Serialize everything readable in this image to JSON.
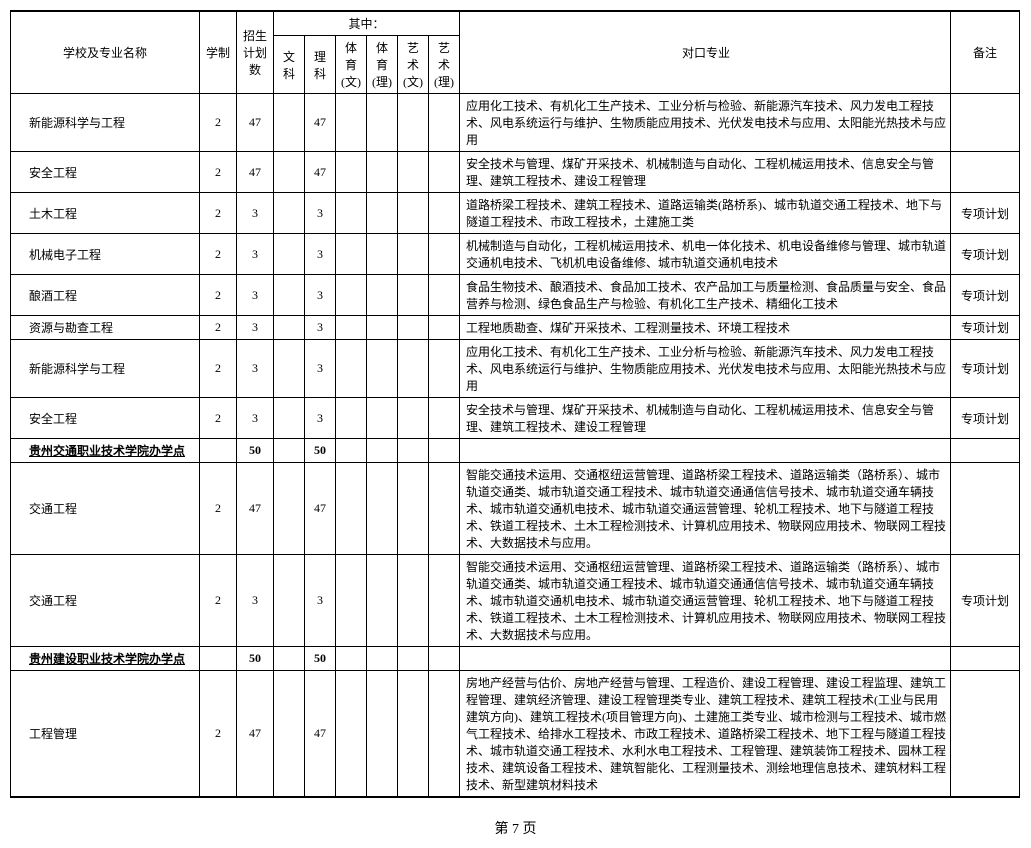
{
  "headers": {
    "name": "学校及专业名称",
    "xuezhi": "学制",
    "zhaosheng": "招生计划数",
    "qizhong": "其中：",
    "wenke": "文科",
    "like": "理科",
    "tiyu_wen": "体育(文)",
    "tiyu_li": "体育(理)",
    "yishu_wen": "艺术(文)",
    "yishu_li": "艺术(理)",
    "duikou": "对口专业",
    "beizhu": "备注"
  },
  "rows": [
    {
      "name": "新能源科学与工程",
      "xz": "2",
      "zs": "47",
      "wk": "",
      "lk": "47",
      "ty1": "",
      "ty2": "",
      "ys1": "",
      "ys2": "",
      "dk": "应用化工技术、有机化工生产技术、工业分析与检验、新能源汽车技术、风力发电工程技术、风电系统运行与维护、生物质能应用技术、光伏发电技术与应用、太阳能光热技术与应用",
      "bz": "",
      "bold": false
    },
    {
      "name": "安全工程",
      "xz": "2",
      "zs": "47",
      "wk": "",
      "lk": "47",
      "ty1": "",
      "ty2": "",
      "ys1": "",
      "ys2": "",
      "dk": "安全技术与管理、煤矿开采技术、机械制造与自动化、工程机械运用技术、信息安全与管理、建筑工程技术、建设工程管理",
      "bz": "",
      "bold": false
    },
    {
      "name": "土木工程",
      "xz": "2",
      "zs": "3",
      "wk": "",
      "lk": "3",
      "ty1": "",
      "ty2": "",
      "ys1": "",
      "ys2": "",
      "dk": "道路桥梁工程技术、建筑工程技术、道路运输类(路桥系)、城市轨道交通工程技术、地下与隧道工程技术、市政工程技术，土建施工类",
      "bz": "专项计划",
      "bold": false
    },
    {
      "name": "机械电子工程",
      "xz": "2",
      "zs": "3",
      "wk": "",
      "lk": "3",
      "ty1": "",
      "ty2": "",
      "ys1": "",
      "ys2": "",
      "dk": "机械制造与自动化，工程机械运用技术、机电一体化技术、机电设备维修与管理、城市轨道交通机电技术、飞机机电设备维修、城市轨道交通机电技术",
      "bz": "专项计划",
      "bold": false
    },
    {
      "name": "酿酒工程",
      "xz": "2",
      "zs": "3",
      "wk": "",
      "lk": "3",
      "ty1": "",
      "ty2": "",
      "ys1": "",
      "ys2": "",
      "dk": "食品生物技术、酿酒技术、食品加工技术、农产品加工与质量检测、食品质量与安全、食品营养与检测、绿色食品生产与检验、有机化工生产技术、精细化工技术",
      "bz": "专项计划",
      "bold": false
    },
    {
      "name": "资源与勘查工程",
      "xz": "2",
      "zs": "3",
      "wk": "",
      "lk": "3",
      "ty1": "",
      "ty2": "",
      "ys1": "",
      "ys2": "",
      "dk": "工程地质勘查、煤矿开采技术、工程测量技术、环境工程技术",
      "bz": "专项计划",
      "bold": false
    },
    {
      "name": "新能源科学与工程",
      "xz": "2",
      "zs": "3",
      "wk": "",
      "lk": "3",
      "ty1": "",
      "ty2": "",
      "ys1": "",
      "ys2": "",
      "dk": "应用化工技术、有机化工生产技术、工业分析与检验、新能源汽车技术、风力发电工程技术、风电系统运行与维护、生物质能应用技术、光伏发电技术与应用、太阳能光热技术与应用",
      "bz": "专项计划",
      "bold": false
    },
    {
      "name": "安全工程",
      "xz": "2",
      "zs": "3",
      "wk": "",
      "lk": "3",
      "ty1": "",
      "ty2": "",
      "ys1": "",
      "ys2": "",
      "dk": "安全技术与管理、煤矿开采技术、机械制造与自动化、工程机械运用技术、信息安全与管理、建筑工程技术、建设工程管理",
      "bz": "专项计划",
      "bold": false
    },
    {
      "name": "贵州交通职业技术学院办学点",
      "xz": "",
      "zs": "50",
      "wk": "",
      "lk": "50",
      "ty1": "",
      "ty2": "",
      "ys1": "",
      "ys2": "",
      "dk": "",
      "bz": "",
      "bold": true
    },
    {
      "name": "交通工程",
      "xz": "2",
      "zs": "47",
      "wk": "",
      "lk": "47",
      "ty1": "",
      "ty2": "",
      "ys1": "",
      "ys2": "",
      "dk": "智能交通技术运用、交通枢纽运营管理、道路桥梁工程技术、道路运输类（路桥系）、城市轨道交通类、城市轨道交通工程技术、城市轨道交通通信信号技术、城市轨道交通车辆技术、城市轨道交通机电技术、城市轨道交通运营管理、轮机工程技术、地下与隧道工程技术、铁道工程技术、土木工程检测技术、计算机应用技术、物联网应用技术、物联网工程技术、大数据技术与应用。",
      "bz": "",
      "bold": false
    },
    {
      "name": "交通工程",
      "xz": "2",
      "zs": "3",
      "wk": "",
      "lk": "3",
      "ty1": "",
      "ty2": "",
      "ys1": "",
      "ys2": "",
      "dk": "智能交通技术运用、交通枢纽运营管理、道路桥梁工程技术、道路运输类（路桥系）、城市轨道交通类、城市轨道交通工程技术、城市轨道交通通信信号技术、城市轨道交通车辆技术、城市轨道交通机电技术、城市轨道交通运营管理、轮机工程技术、地下与隧道工程技术、铁道工程技术、土木工程检测技术、计算机应用技术、物联网应用技术、物联网工程技术、大数据技术与应用。",
      "bz": "专项计划",
      "bold": false
    },
    {
      "name": "贵州建设职业技术学院办学点",
      "xz": "",
      "zs": "50",
      "wk": "",
      "lk": "50",
      "ty1": "",
      "ty2": "",
      "ys1": "",
      "ys2": "",
      "dk": "",
      "bz": "",
      "bold": true
    },
    {
      "name": "工程管理",
      "xz": "2",
      "zs": "47",
      "wk": "",
      "lk": "47",
      "ty1": "",
      "ty2": "",
      "ys1": "",
      "ys2": "",
      "dk": "房地产经营与估价、房地产经营与管理、工程造价、建设工程管理、建设工程监理、建筑工程管理、建筑经济管理、建设工程管理类专业、建筑工程技术、建筑工程技术(工业与民用建筑方向)、建筑工程技术(项目管理方向)、土建施工类专业、城市检测与工程技术、城市燃气工程技术、给排水工程技术、市政工程技术、道路桥梁工程技术、地下工程与隧道工程技术、城市轨道交通工程技术、水利水电工程技术、工程管理、建筑装饰工程技术、园林工程技术、建筑设备工程技术、建筑智能化、工程测量技术、测绘地理信息技术、建筑材料工程技术、新型建筑材料技术",
      "bz": "",
      "bold": false
    }
  ],
  "page_label": "第 7 页",
  "style": {
    "font_family": "SimSun",
    "base_fontsize": 12,
    "border_color": "#000000",
    "thick_border_width": 2,
    "background": "#ffffff"
  }
}
